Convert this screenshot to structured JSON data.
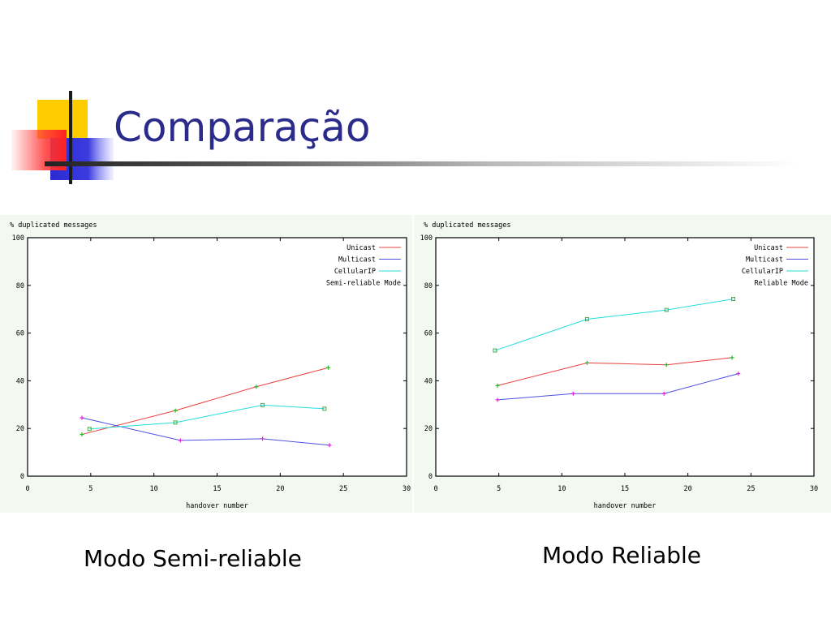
{
  "slide": {
    "title": "Comparação",
    "captions": [
      "Modo Semi-reliable",
      "Modo Reliable"
    ]
  },
  "chart_data": [
    {
      "type": "line",
      "ylabel": "% duplicated messages",
      "xlabel": "handover number",
      "xlim": [
        0,
        30
      ],
      "ylim": [
        0,
        100
      ],
      "xticks": [
        0,
        5,
        10,
        15,
        20,
        25,
        30
      ],
      "yticks": [
        0,
        20,
        40,
        60,
        80,
        100
      ],
      "grid": false,
      "legend_position": "top-right",
      "legend_title": "Semi-reliable Mode",
      "series": [
        {
          "name": "Unicast",
          "color": "#e8403c",
          "marker_color": "#22bb22",
          "points": [
            [
              4.3,
              17.5
            ],
            [
              11.7,
              27.5
            ],
            [
              18.1,
              37.5
            ],
            [
              23.8,
              45.5
            ]
          ]
        },
        {
          "name": "Multicast",
          "color": "#5050e0",
          "marker_color": "#e020e0",
          "points": [
            [
              4.3,
              24.5
            ],
            [
              12.1,
              15
            ],
            [
              18.6,
              15.7
            ],
            [
              23.9,
              13
            ]
          ]
        },
        {
          "name": "CellularIP",
          "color": "#22dddd",
          "marker_color": "#44aa44",
          "points": [
            [
              4.9,
              19.8
            ],
            [
              11.7,
              22.5
            ],
            [
              18.6,
              29.8
            ],
            [
              23.5,
              28.3
            ]
          ]
        }
      ]
    },
    {
      "type": "line",
      "ylabel": "% duplicated messages",
      "xlabel": "handover number",
      "xlim": [
        0,
        30
      ],
      "ylim": [
        0,
        100
      ],
      "xticks": [
        0,
        5,
        10,
        15,
        20,
        25,
        30
      ],
      "yticks": [
        0,
        20,
        40,
        60,
        80,
        100
      ],
      "grid": false,
      "legend_position": "top-right",
      "legend_title": "Reliable Mode",
      "series": [
        {
          "name": "Unicast",
          "color": "#e8403c",
          "marker_color": "#22bb22",
          "points": [
            [
              4.9,
              38
            ],
            [
              12.0,
              47.5
            ],
            [
              18.3,
              46.7
            ],
            [
              23.5,
              49.7
            ]
          ]
        },
        {
          "name": "Multicast",
          "color": "#5050e0",
          "marker_color": "#e020e0",
          "points": [
            [
              4.9,
              32
            ],
            [
              10.9,
              34.6
            ],
            [
              18.1,
              34.6
            ],
            [
              24.0,
              43
            ]
          ]
        },
        {
          "name": "CellularIP",
          "color": "#22dddd",
          "marker_color": "#44aa44",
          "points": [
            [
              4.7,
              52.7
            ],
            [
              12.0,
              65.8
            ],
            [
              18.3,
              69.7
            ],
            [
              23.6,
              74.3
            ]
          ]
        }
      ]
    }
  ]
}
